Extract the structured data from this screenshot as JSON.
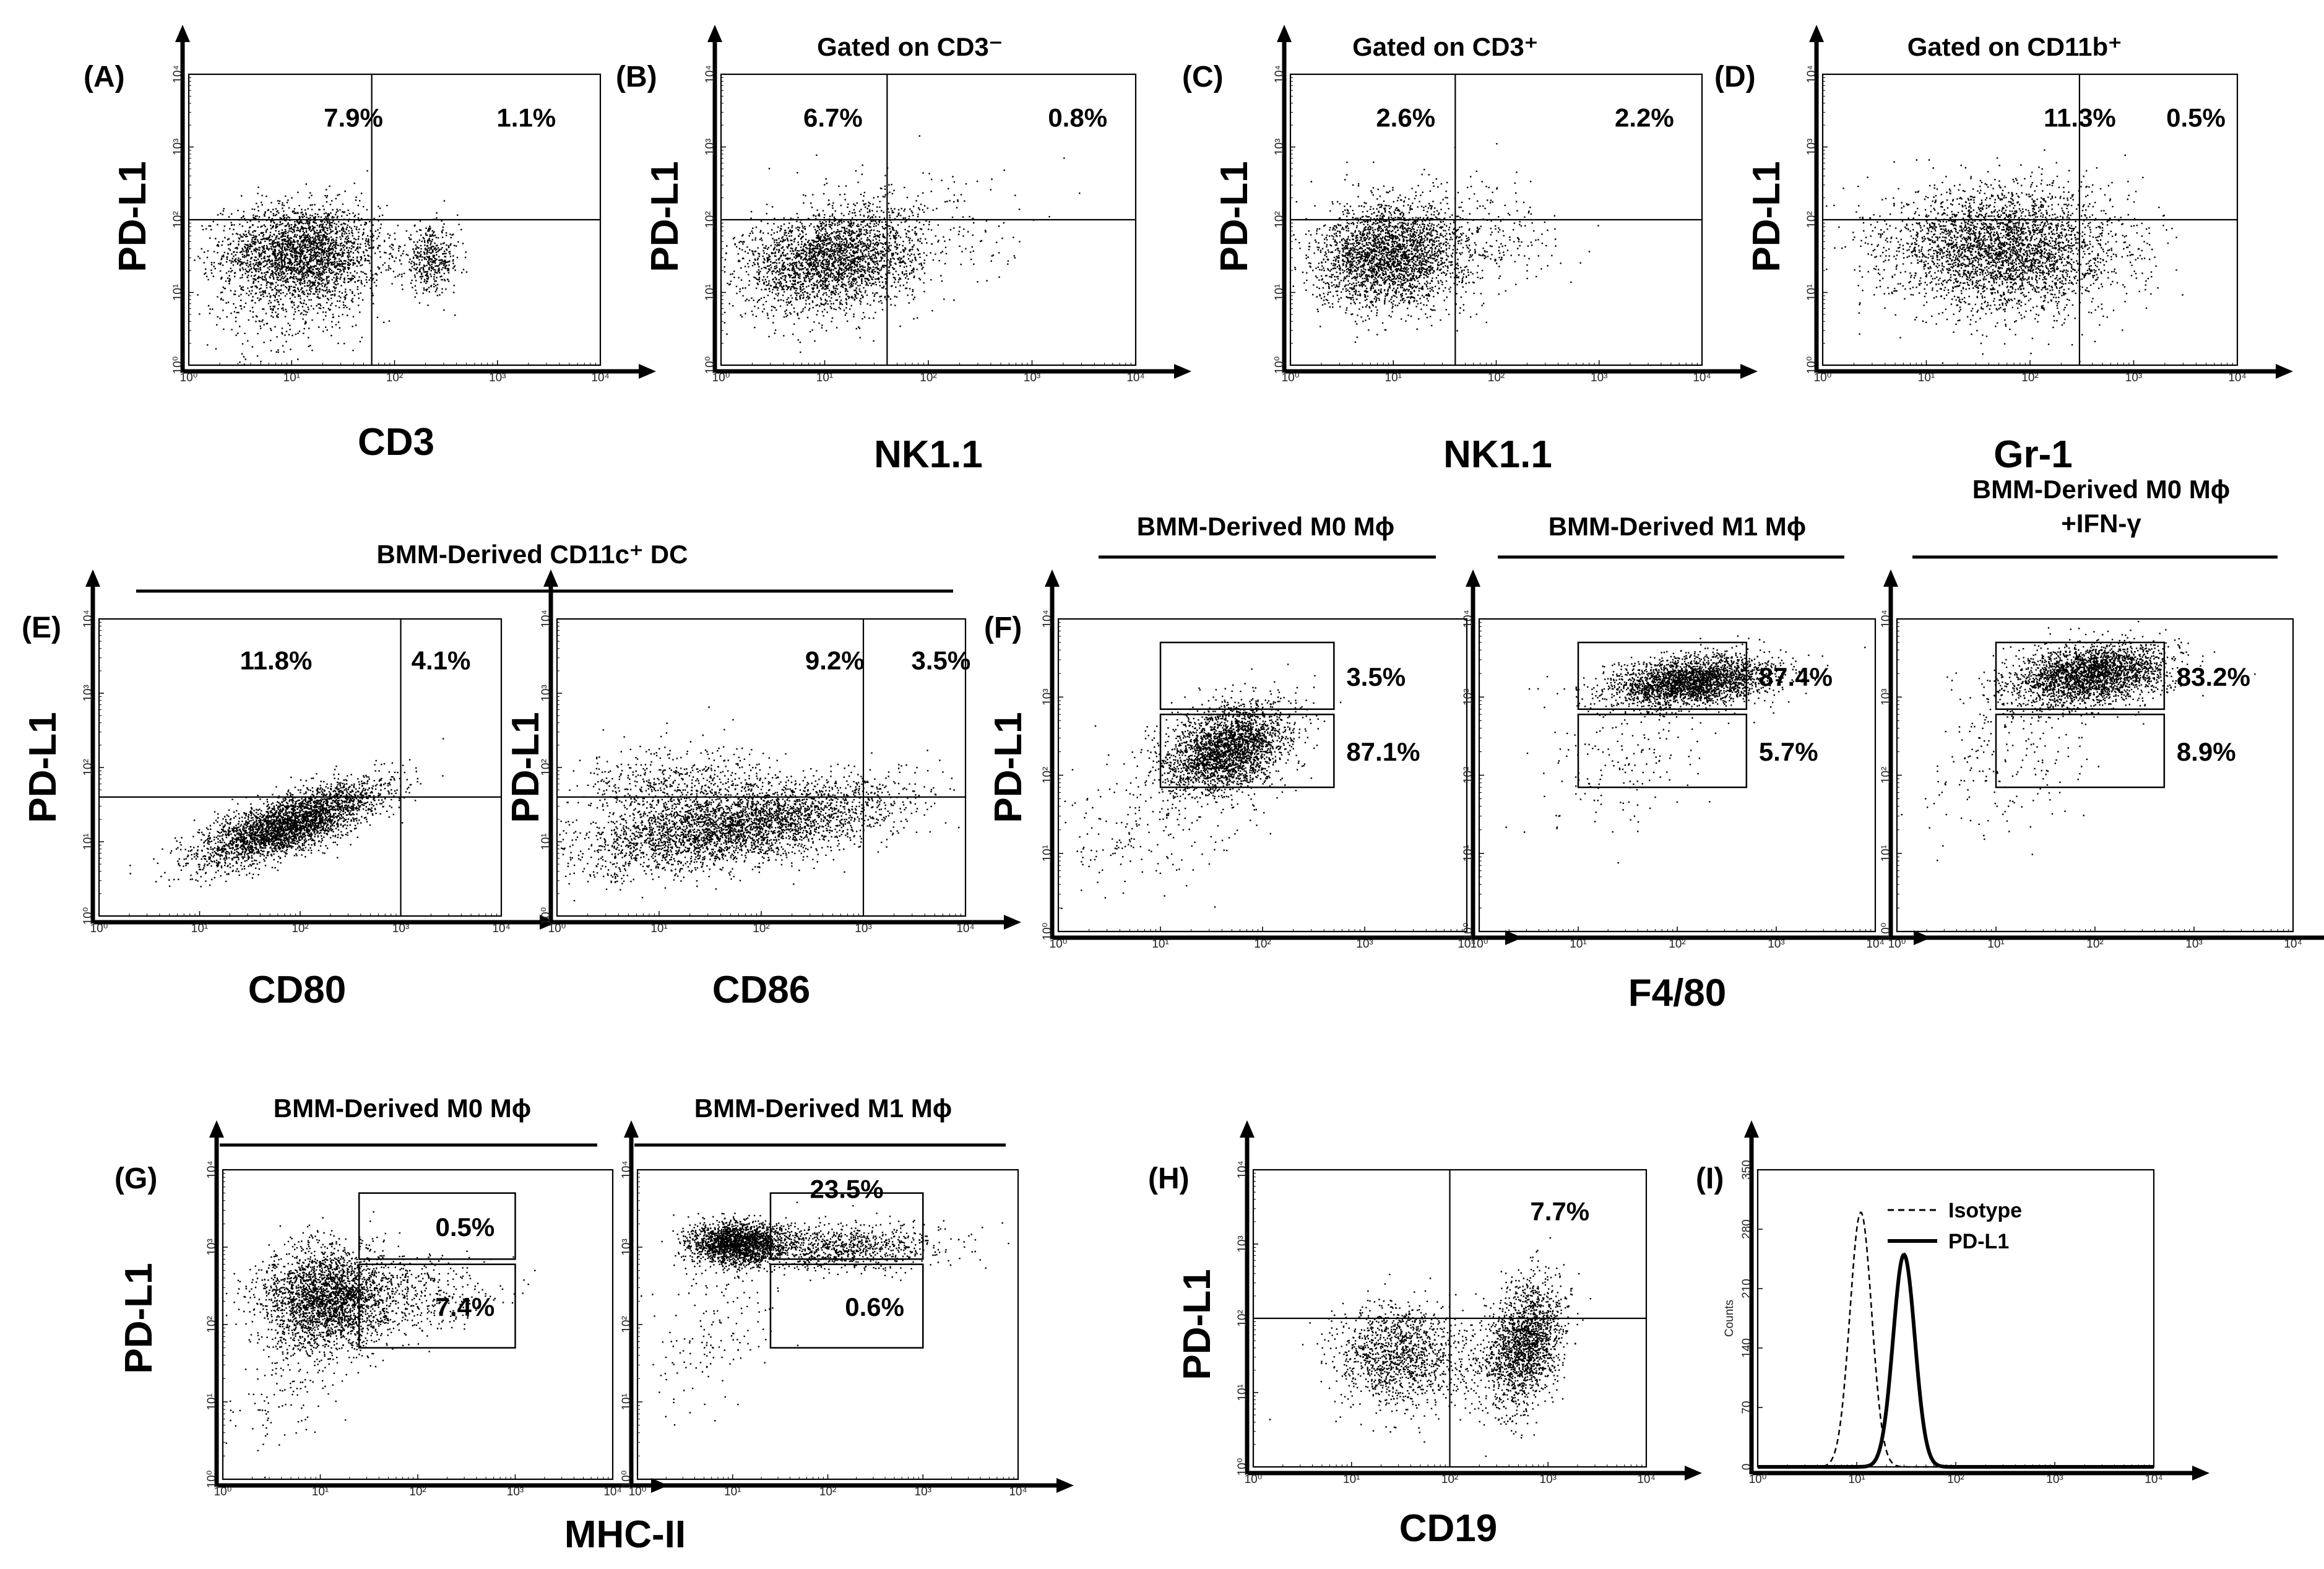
{
  "figure": {
    "headers": {
      "b": "Gated on CD3⁻",
      "c": "Gated on CD3⁺",
      "d": "Gated on CD11b⁺",
      "e": "BMM-Derived CD11c⁺ DC",
      "f1": "BMM-Derived M0 Mϕ",
      "f2": "BMM-Derived M1 Mϕ",
      "f3a": "BMM-Derived M0 Mϕ",
      "f3b": "+IFN-γ",
      "g1": "BMM-Derived M0 Mϕ",
      "g2": "BMM-Derived M1 Mϕ"
    },
    "axis_labels": {
      "ylabel": "PD-L1",
      "a": "CD3",
      "b": "NK1.1",
      "c": "NK1.1",
      "d": "Gr-1",
      "e1": "CD80",
      "e2": "CD86",
      "f": "F4/80",
      "g": "MHC-II",
      "h": "CD19"
    },
    "log_ticks": [
      "10⁰",
      "10¹",
      "10²",
      "10³",
      "10⁴"
    ]
  },
  "chart_data": [
    {
      "id": "A",
      "type": "scatter",
      "panel_label": "(A)",
      "title": "",
      "xlabel": "CD3",
      "ylabel": "PD-L1",
      "xscale": "log",
      "xlim": [
        1,
        10000
      ],
      "ylim": [
        1,
        10000
      ],
      "quadrant_gate": {
        "x": 60,
        "y": 100
      },
      "annotations": [
        "7.9%",
        "1.1%"
      ]
    },
    {
      "id": "B",
      "type": "scatter",
      "panel_label": "(B)",
      "title": "Gated on CD3⁻",
      "xlabel": "NK1.1",
      "ylabel": "PD-L1",
      "xscale": "log",
      "xlim": [
        1,
        10000
      ],
      "ylim": [
        1,
        10000
      ],
      "quadrant_gate": {
        "x": 40,
        "y": 100
      },
      "annotations": [
        "6.7%",
        "0.8%"
      ]
    },
    {
      "id": "C",
      "type": "scatter",
      "panel_label": "(C)",
      "title": "Gated on CD3⁺",
      "xlabel": "NK1.1",
      "ylabel": "PD-L1",
      "xscale": "log",
      "xlim": [
        1,
        10000
      ],
      "ylim": [
        1,
        10000
      ],
      "quadrant_gate": {
        "x": 40,
        "y": 100
      },
      "annotations": [
        "2.6%",
        "2.2%"
      ]
    },
    {
      "id": "D",
      "type": "scatter",
      "panel_label": "(D)",
      "title": "Gated on CD11b⁺",
      "xlabel": "Gr-1",
      "ylabel": "PD-L1",
      "xscale": "log",
      "xlim": [
        1,
        10000
      ],
      "ylim": [
        1,
        10000
      ],
      "quadrant_gate": {
        "x": 300,
        "y": 100
      },
      "annotations": [
        "11.3%",
        "0.5%"
      ]
    },
    {
      "id": "E1",
      "type": "scatter",
      "panel_label": "(E)",
      "title": "BMM-Derived CD11c⁺ DC",
      "xlabel": "CD80",
      "ylabel": "PD-L1",
      "xscale": "log",
      "xlim": [
        1,
        10000
      ],
      "ylim": [
        1,
        10000
      ],
      "quadrant_gate": {
        "x": 1000,
        "y": 40
      },
      "annotations": [
        "11.8%",
        "4.1%"
      ]
    },
    {
      "id": "E2",
      "type": "scatter",
      "panel_label": "",
      "title": "BMM-Derived CD11c⁺ DC",
      "xlabel": "CD86",
      "ylabel": "PD-L1",
      "xscale": "log",
      "xlim": [
        1,
        10000
      ],
      "ylim": [
        1,
        10000
      ],
      "quadrant_gate": {
        "x": 1000,
        "y": 40
      },
      "annotations": [
        "9.2%",
        "3.5%"
      ]
    },
    {
      "id": "F1",
      "type": "scatter",
      "panel_label": "(F)",
      "title": "BMM-Derived M0 Mϕ",
      "xlabel": "F4/80",
      "ylabel": "PD-L1",
      "xscale": "log",
      "xlim": [
        1,
        10000
      ],
      "ylim": [
        1,
        10000
      ],
      "gates": [
        {
          "x": [
            10,
            500
          ],
          "y": [
            700,
            5000
          ],
          "label": "3.5%"
        },
        {
          "x": [
            10,
            500
          ],
          "y": [
            70,
            600
          ],
          "label": "87.1%"
        }
      ]
    },
    {
      "id": "F2",
      "type": "scatter",
      "panel_label": "",
      "title": "BMM-Derived M1 Mϕ",
      "xlabel": "F4/80",
      "ylabel": "PD-L1",
      "xscale": "log",
      "xlim": [
        1,
        10000
      ],
      "ylim": [
        1,
        10000
      ],
      "gates": [
        {
          "x": [
            10,
            500
          ],
          "y": [
            700,
            5000
          ],
          "label": "87.4%"
        },
        {
          "x": [
            10,
            500
          ],
          "y": [
            70,
            600
          ],
          "label": "5.7%"
        }
      ]
    },
    {
      "id": "F3",
      "type": "scatter",
      "panel_label": "",
      "title": "BMM-Derived M0 Mϕ +IFN-γ",
      "xlabel": "F4/80",
      "ylabel": "PD-L1",
      "xscale": "log",
      "xlim": [
        1,
        10000
      ],
      "ylim": [
        1,
        10000
      ],
      "gates": [
        {
          "x": [
            10,
            500
          ],
          "y": [
            700,
            5000
          ],
          "label": "83.2%"
        },
        {
          "x": [
            10,
            500
          ],
          "y": [
            70,
            600
          ],
          "label": "8.9%"
        }
      ]
    },
    {
      "id": "G1",
      "type": "scatter",
      "panel_label": "(G)",
      "title": "BMM-Derived M0 Mϕ",
      "xlabel": "MHC-II",
      "ylabel": "PD-L1",
      "xscale": "log",
      "xlim": [
        1,
        10000
      ],
      "ylim": [
        1,
        10000
      ],
      "gates": [
        {
          "x": [
            25,
            1000
          ],
          "y": [
            700,
            5000
          ],
          "label": "0.5%"
        },
        {
          "x": [
            25,
            1000
          ],
          "y": [
            50,
            600
          ],
          "label": "7.4%"
        }
      ]
    },
    {
      "id": "G2",
      "type": "scatter",
      "panel_label": "",
      "title": "BMM-Derived M1 Mϕ",
      "xlabel": "MHC-II",
      "ylabel": "PD-L1",
      "xscale": "log",
      "xlim": [
        1,
        10000
      ],
      "ylim": [
        1,
        10000
      ],
      "gates": [
        {
          "x": [
            25,
            1000
          ],
          "y": [
            700,
            5000
          ],
          "label": "23.5%"
        },
        {
          "x": [
            25,
            1000
          ],
          "y": [
            50,
            600
          ],
          "label": "0.6%"
        }
      ]
    },
    {
      "id": "H",
      "type": "scatter",
      "panel_label": "(H)",
      "title": "",
      "xlabel": "CD19",
      "ylabel": "PD-L1",
      "xscale": "log",
      "xlim": [
        1,
        10000
      ],
      "ylim": [
        1,
        10000
      ],
      "quadrant_gate": {
        "x": 100,
        "y": 100
      },
      "annotations": [
        "7.7%"
      ]
    },
    {
      "id": "I",
      "type": "line",
      "panel_label": "(I)",
      "title": "",
      "xlabel": "",
      "ylabel": "Counts",
      "xscale": "log",
      "xlim": [
        1,
        10000
      ],
      "ylim": [
        0,
        350
      ],
      "yticks": [
        0,
        70,
        140,
        210,
        280,
        350
      ],
      "series": [
        {
          "name": "Isotype",
          "style": "dashed",
          "peak_x": 11,
          "peak_y": 300
        },
        {
          "name": "PD-L1",
          "style": "solid",
          "peak_x": 30,
          "peak_y": 250
        }
      ]
    }
  ]
}
